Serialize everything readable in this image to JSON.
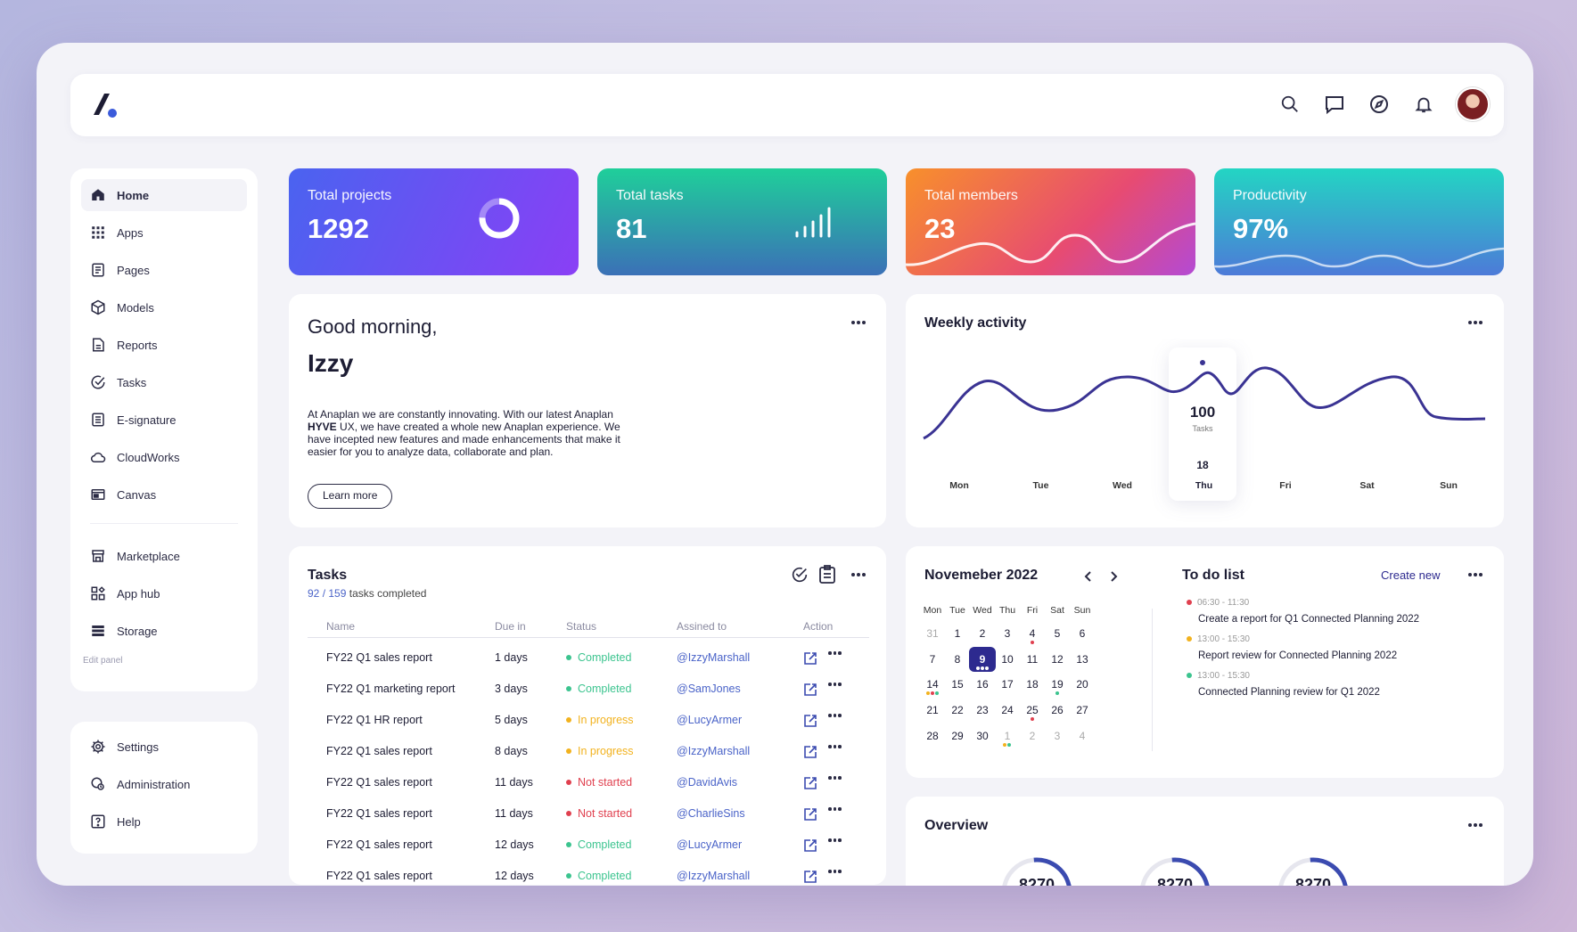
{
  "nav": {
    "main": [
      {
        "label": "Home",
        "icon": "home-icon",
        "active": true
      },
      {
        "label": "Apps",
        "icon": "grid-icon"
      },
      {
        "label": "Pages",
        "icon": "pages-icon"
      },
      {
        "label": "Models",
        "icon": "cube-icon"
      },
      {
        "label": "Reports",
        "icon": "report-icon"
      },
      {
        "label": "Tasks",
        "icon": "check-circle-icon"
      },
      {
        "label": "E-signature",
        "icon": "signature-icon"
      },
      {
        "label": "CloudWorks",
        "icon": "cloud-icon"
      },
      {
        "label": "Canvas",
        "icon": "canvas-icon"
      }
    ],
    "secondary": [
      {
        "label": "Marketplace",
        "icon": "store-icon"
      },
      {
        "label": "App hub",
        "icon": "app-hub-icon"
      },
      {
        "label": "Storage",
        "icon": "storage-icon"
      }
    ],
    "edit_panel": "Edit panel",
    "bottom": [
      {
        "label": "Settings",
        "icon": "gear-icon"
      },
      {
        "label": "Administration",
        "icon": "admin-icon"
      },
      {
        "label": "Help",
        "icon": "help-icon"
      }
    ]
  },
  "topbar_icons": [
    "search-icon",
    "chat-icon",
    "compass-icon",
    "bell-icon"
  ],
  "stats": [
    {
      "label": "Total projects",
      "value": "1292"
    },
    {
      "label": "Total tasks",
      "value": "81"
    },
    {
      "label": "Total members",
      "value": "23"
    },
    {
      "label": "Productivity",
      "value": "97%"
    }
  ],
  "greeting": {
    "line1": "Good morning,",
    "name": "Izzy",
    "desc_before": "At Anaplan we are constantly innovating.  With our latest Anaplan ",
    "desc_bold": "HYVE",
    "desc_after": " UX, we have created a whole new Anaplan experience. We have incepted new features and made enhancements that make it easier for you to analyze data, collaborate and plan.",
    "button": "Learn more"
  },
  "weekly": {
    "title": "Weekly activity",
    "highlight": {
      "value": "100",
      "unit": "Tasks",
      "date": "18",
      "day": "Thu"
    },
    "days": [
      "Mon",
      "Tue",
      "Wed",
      "Thu",
      "Fri",
      "Sat",
      "Sun"
    ]
  },
  "tasks": {
    "title": "Tasks",
    "done": "92",
    "total": "159",
    "done_suffix": "tasks completed",
    "columns": [
      "Name",
      "Due in",
      "Status",
      "Assined to",
      "Action"
    ],
    "rows": [
      {
        "name": "FY22 Q1 sales report",
        "due": "1 days",
        "status": "Completed",
        "kind": "completed",
        "assignee": "@IzzyMarshall"
      },
      {
        "name": "FY22 Q1 marketing report",
        "due": "3 days",
        "status": "Completed",
        "kind": "completed",
        "assignee": "@SamJones"
      },
      {
        "name": "FY22 Q1 HR report",
        "due": "5 days",
        "status": "In progress",
        "kind": "progress",
        "assignee": "@LucyArmer"
      },
      {
        "name": "FY22 Q1 sales report",
        "due": "8 days",
        "status": "In progress",
        "kind": "progress",
        "assignee": "@IzzyMarshall"
      },
      {
        "name": "FY22 Q1 sales report",
        "due": "11 days",
        "status": "Not started",
        "kind": "notstarted",
        "assignee": "@DavidAvis"
      },
      {
        "name": "FY22 Q1 sales report",
        "due": "11 days",
        "status": "Not started",
        "kind": "notstarted",
        "assignee": "@CharlieSins"
      },
      {
        "name": "FY22 Q1 sales report",
        "due": "12 days",
        "status": "Completed",
        "kind": "completed",
        "assignee": "@LucyArmer"
      },
      {
        "name": "FY22 Q1 sales report",
        "due": "12 days",
        "status": "Completed",
        "kind": "completed",
        "assignee": "@IzzyMarshall"
      }
    ]
  },
  "calendar": {
    "title": "Novemeber 2022",
    "dow": [
      "Mon",
      "Tue",
      "Wed",
      "Thu",
      "Fri",
      "Sat",
      "Sun"
    ],
    "weeks": [
      [
        "31",
        "1",
        "2",
        "3",
        "4",
        "5",
        "6"
      ],
      [
        "7",
        "8",
        "9",
        "10",
        "11",
        "12",
        "13"
      ],
      [
        "14",
        "15",
        "16",
        "17",
        "18",
        "19",
        "20"
      ],
      [
        "21",
        "22",
        "23",
        "24",
        "25",
        "26",
        "27"
      ],
      [
        "28",
        "29",
        "30",
        "1",
        "2",
        "3",
        "4"
      ]
    ],
    "selected": "9"
  },
  "todo": {
    "title": "To do list",
    "create": "Create new",
    "items": [
      {
        "time": "06:30 - 11:30",
        "text": "Create a report for Q1 Connected Planning 2022",
        "color": "#e0404f"
      },
      {
        "time": "13:00 - 15:30",
        "text": "Report review for Connected Planning 2022",
        "color": "#f2b21e"
      },
      {
        "time": "13:00 - 15:30",
        "text": "Connected Planning review for Q1 2022",
        "color": "#3cc48f"
      }
    ]
  },
  "overview": {
    "title": "Overview",
    "rings": [
      "8270",
      "8270",
      "8270"
    ]
  },
  "colors": {
    "accent": "#2d2a8f",
    "completed": "#3cc48f",
    "progress": "#f2b21e",
    "not_started": "#e0404f",
    "link": "#4a63c8"
  }
}
